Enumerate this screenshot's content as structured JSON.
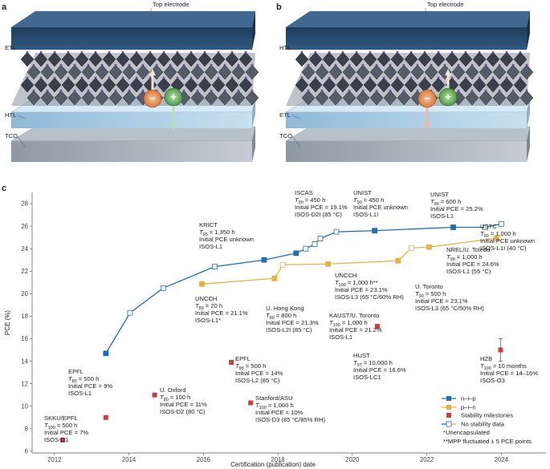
{
  "panels": [
    {
      "label": "a",
      "top": "Top electrode",
      "upper": "ETL",
      "lower": "HTL",
      "base": "TCO",
      "minus": "−",
      "plus": "+"
    },
    {
      "label": "b",
      "top": "Top electrode",
      "upper": "HTL",
      "lower": "ETL",
      "base": "TCO",
      "minus": "−",
      "plus": "+"
    }
  ],
  "chart_data": {
    "type": "line",
    "panel_label": "c",
    "xlabel": "Certification (publication) date",
    "ylabel": "PCE (%)",
    "xlim": [
      2011.4,
      2025.2
    ],
    "ylim": [
      5.85,
      29
    ],
    "xticks": [
      2012,
      2014,
      2016,
      2018,
      2020,
      2022,
      2024
    ],
    "yticks": [
      6,
      8,
      10,
      12,
      14,
      16,
      18,
      20,
      22,
      24,
      26,
      28
    ],
    "series": [
      {
        "name": "n–i–p",
        "color": "#1f6eb4",
        "x": [
          2013.38,
          2014.03,
          2014.92,
          2016.3,
          2017.63,
          2018.49,
          2018.75,
          2018.99,
          2019.14,
          2019.57,
          2020.6,
          2022.71,
          2023.57,
          2024.0
        ],
        "values": [
          14.7,
          18.3,
          20.5,
          22.4,
          23.0,
          23.6,
          24.0,
          24.4,
          24.9,
          25.5,
          25.6,
          25.9,
          25.9,
          26.2
        ],
        "milestone": [
          true,
          false,
          false,
          false,
          true,
          true,
          false,
          false,
          false,
          false,
          true,
          true,
          false,
          false
        ]
      },
      {
        "name": "p–i–n",
        "color": "#e3b443",
        "x": [
          2015.96,
          2017.91,
          2018.13,
          2019.35,
          2021.23,
          2021.59,
          2022.06,
          2023.87
        ],
        "values": [
          20.86,
          21.36,
          22.57,
          22.64,
          22.93,
          24.07,
          24.14,
          24.93
        ],
        "milestone": [
          true,
          true,
          false,
          true,
          true,
          false,
          true,
          true
        ]
      }
    ],
    "milestones": {
      "name": "Stability milestones",
      "color": "#c9403d",
      "x": [
        2012.22,
        2013.38,
        2014.69,
        2016.75,
        2017.27,
        2020.67,
        2023.98
      ],
      "values": [
        7.0,
        9.0,
        11.0,
        13.9,
        10.3,
        17.1,
        15.0
      ],
      "errors": [
        null,
        null,
        null,
        null,
        null,
        null,
        1
      ]
    },
    "legend_extra": [
      "No stability data",
      "*Unencapsulated",
      "**MPP fluctuated ± 5 PCE points"
    ],
    "t_symbol": "T",
    "annotations": [
      {
        "label": "SKKU/EPFL",
        "t_sub": "100",
        "t_value": "= 500 h",
        "lines": [
          "Initial PCE = 7%",
          "ISOS-D1"
        ]
      },
      {
        "label": "EPFL",
        "t_sub": "80",
        "t_value": "= 500 h",
        "lines": [
          "Initial PCE = 9%",
          "ISOS-L1"
        ]
      },
      {
        "label": "U. Oxford",
        "t_sub": "80",
        "t_value": "= 100 h",
        "lines": [
          "Initial PCE = 11%",
          "ISOS-D2 (80 °C)"
        ]
      },
      {
        "label": "UNCCH",
        "t_sub": "80",
        "t_value": "= 20 h",
        "lines": [
          "Initial PCE = 21.1%",
          "ISOS-L1*"
        ]
      },
      {
        "label": "KRICT",
        "t_sub": "95",
        "t_value": "= 1,350 h",
        "lines": [
          "Initial PCE unknown",
          "ISOS-L1"
        ]
      },
      {
        "label": "EPFL",
        "t_sub": "95",
        "t_value": "= 500 h",
        "lines": [
          "Initial PCE = 14%",
          "ISOS-L2 (85 °C)"
        ]
      },
      {
        "label": "Stanford/ASU",
        "t_sub": "100",
        "t_value": "= 1,000 h",
        "lines": [
          "Initial PCE = 10%",
          "ISOS-D3 (85 °C/85% RH)"
        ]
      },
      {
        "label": "U. Hong Kong",
        "t_sub": "80",
        "t_value": "= 800 h",
        "lines": [
          "Initial PCE = 21.3%",
          "ISOS-L2I (85 °C)"
        ]
      },
      {
        "label": "ISCAS",
        "t_sub": "90",
        "t_value": "= 450 h",
        "lines": [
          "Initial PCE = 19.1%",
          "ISOS-D2I (85 °C)"
        ]
      },
      {
        "label": "UNIST",
        "t_sub": "90",
        "t_value": "= 450 h",
        "lines": [
          "Initial PCE unknown",
          "ISOS-L1I"
        ]
      },
      {
        "label": "UNIST",
        "t_sub": "80",
        "t_value": "= 600 h",
        "lines": [
          "Initial PCE = 25.2%",
          "ISOS-L1"
        ]
      },
      {
        "label": "UNCCH",
        "t_sub": "100",
        "t_value": "= 1,000 h**",
        "lines": [
          "Initial PCE = 23.1%",
          "ISOS-L3 (65 °C/60% RH)"
        ]
      },
      {
        "label": "KAUST/U. Toronto",
        "t_sub": "100",
        "t_value": "= 1,000 h",
        "lines": [
          "Initial PCE = 21.2%",
          "ISOS-L1"
        ]
      },
      {
        "label": "HUST",
        "t_sub": "97",
        "t_value": "= 10,000 h",
        "lines": [
          "Initial PCE = 16.6%",
          "ISOS-LC1"
        ]
      },
      {
        "label": "U. Toronto",
        "t_sub": "90",
        "t_value": "= 500 h",
        "lines": [
          "Initial PCE = 23.1%",
          "ISOS-L3 (65 °C/50% RH)"
        ]
      },
      {
        "label": "NREL/U. Toledo",
        "t_sub": "90",
        "t_value": "= 1,000 h",
        "lines": [
          "Initial PCE = 24.6%",
          "ISOS-L1 (55 °C)"
        ]
      },
      {
        "label": "USTC",
        "t_sub": "90",
        "t_value": "= 1,000 h",
        "lines": [
          "Initial PCE unknown",
          "ISOS-L1I (40 °C)"
        ]
      },
      {
        "label": "HZB",
        "t_sub": "100",
        "t_value": "= 10 months",
        "lines": [
          "Initial PCE = 14–16%",
          "ISOS-O3"
        ]
      }
    ]
  }
}
